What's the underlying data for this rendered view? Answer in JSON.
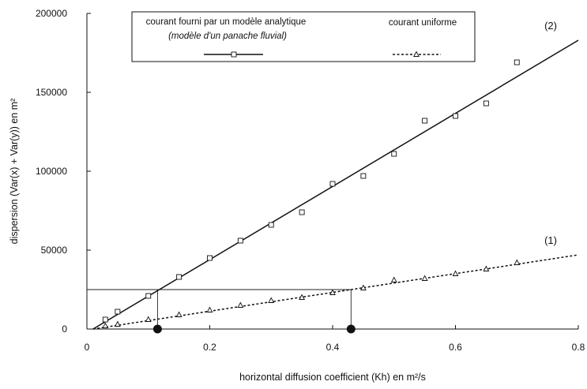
{
  "chart_data": {
    "type": "scatter",
    "xlabel": "horizontal diffusion coefficient (Kh)  en m²/s",
    "ylabel": "dispersion (Var(x) + Var(y))    en m²",
    "xlim": [
      0,
      0.8
    ],
    "ylim": [
      0,
      200000
    ],
    "x_ticks": [
      0,
      0.2,
      0.4,
      0.6,
      0.8
    ],
    "x_tick_labels": [
      "0",
      "0.2",
      "0.4",
      "0.6",
      "0.8"
    ],
    "y_ticks": [
      0,
      50000,
      100000,
      150000,
      200000
    ],
    "y_tick_labels": [
      "0",
      "50000",
      "100000",
      "150000",
      "200000"
    ],
    "grid": false,
    "legend_position": "top-center",
    "series": [
      {
        "name": "courant fourni par un modèle analytique",
        "name_sub": "(modèle d'un panache fluvial)",
        "curve_label": "(2)",
        "marker": "square",
        "line_style": "solid",
        "x": [
          0.03,
          0.05,
          0.1,
          0.15,
          0.2,
          0.25,
          0.3,
          0.35,
          0.4,
          0.45,
          0.5,
          0.55,
          0.6,
          0.65,
          0.7
        ],
        "values": [
          6000,
          11000,
          21000,
          33000,
          45000,
          56000,
          66000,
          74000,
          92000,
          97000,
          111000,
          132000,
          135000,
          143000,
          169000
        ],
        "fit_line": {
          "x": [
            0.01,
            0.8
          ],
          "y": [
            0,
            183000
          ]
        }
      },
      {
        "name": "courant uniforme",
        "curve_label": "(1)",
        "marker": "triangle",
        "line_style": "dashed",
        "x": [
          0.03,
          0.05,
          0.1,
          0.15,
          0.2,
          0.25,
          0.3,
          0.35,
          0.4,
          0.45,
          0.5,
          0.55,
          0.6,
          0.65,
          0.7
        ],
        "values": [
          2000,
          3000,
          6000,
          9000,
          12000,
          15000,
          18000,
          20000,
          23000,
          26000,
          31000,
          32000,
          35000,
          38000,
          42000
        ],
        "fit_line": {
          "x": [
            0.01,
            0.8
          ],
          "y": [
            0,
            47000
          ]
        }
      }
    ],
    "annotations": {
      "reference_level": 25000,
      "marked_x": [
        0.115,
        0.43
      ]
    }
  }
}
